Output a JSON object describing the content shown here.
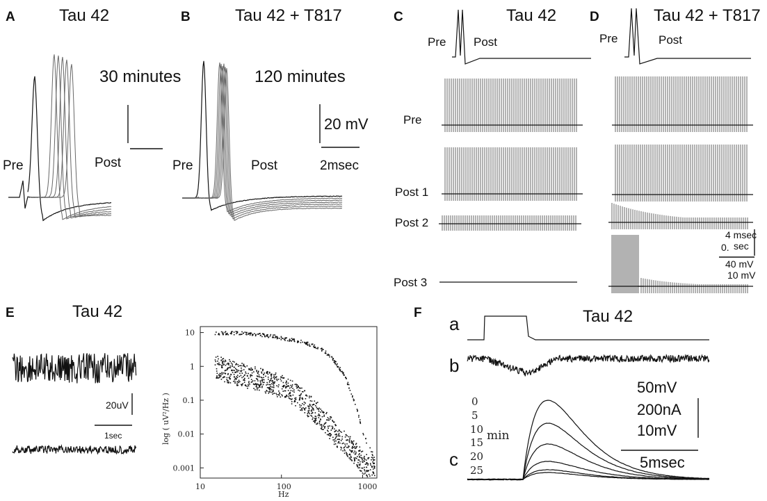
{
  "panel_letters": [
    "A",
    "B",
    "C",
    "D",
    "E",
    "F"
  ],
  "panel_a": {
    "title": "Tau 42",
    "time": "30 minutes",
    "pre": "Pre",
    "post": "Post"
  },
  "panel_b": {
    "title": "Tau 42 + T817",
    "time": "120 minutes",
    "pre": "Pre",
    "post": "Post",
    "scale_v": "20 mV",
    "scale_t": "2msec"
  },
  "panel_c": {
    "title": "Tau 42",
    "pre_small": "Pre",
    "post_small": "Post",
    "rows": [
      "Pre",
      "Post 1",
      "Post 2",
      "Post 3"
    ]
  },
  "panel_d": {
    "title": "Tau 42 + T817",
    "pre_small": "Pre",
    "post_small": "Post",
    "scale_lines": [
      "4 msec",
      "0.",
      "sec",
      "40 mV",
      "10 mV"
    ]
  },
  "panel_e": {
    "title": "Tau 42",
    "scale_v": "20uV",
    "scale_t": "1sec"
  },
  "panel_f": {
    "title": "Tau 42",
    "rows": [
      "a",
      "b",
      "c"
    ],
    "minutes": [
      "0",
      "5",
      "10",
      "15",
      "20",
      "25"
    ],
    "min_label": "min",
    "scale_lines": [
      "50mV",
      "200nA",
      "10mV"
    ],
    "scale_t": "5msec"
  },
  "chart_data": [
    {
      "type": "line",
      "panel": "A",
      "title": "Tau 42",
      "annotation": "30 minutes",
      "series_labels": [
        "Pre",
        "Post"
      ]
    },
    {
      "type": "line",
      "panel": "B",
      "title": "Tau 42 + T817",
      "annotation": "120 minutes",
      "series_labels": [
        "Pre",
        "Post"
      ],
      "scale_bars": [
        "20 mV",
        "2msec"
      ]
    },
    {
      "type": "line",
      "panel": "C",
      "title": "Tau 42",
      "traces": [
        "Pre",
        "Post 1",
        "Post 2",
        "Post 3"
      ]
    },
    {
      "type": "line",
      "panel": "D",
      "title": "Tau 42 + T817"
    },
    {
      "type": "scatter",
      "panel": "E",
      "title": "Tau 42",
      "xlabel": "Hz",
      "ylabel": "log ( uV²/Hz )",
      "xscale": "log",
      "yscale": "log",
      "xlim": [
        10,
        1500
      ],
      "ylim": [
        0.0005,
        15
      ],
      "x_ticks": [
        10,
        100,
        1000
      ],
      "x_tick_labels": [
        "10",
        "100",
        "1000"
      ],
      "y_ticks": [
        10,
        1,
        0.1,
        0.01,
        0.001
      ],
      "y_tick_labels": [
        "10",
        "1",
        "0.1",
        "0.01",
        "0.001"
      ],
      "series": [
        {
          "name": "upper",
          "x": [
            15,
            20,
            25,
            30,
            40,
            50,
            60,
            80,
            100,
            150,
            200,
            300,
            400,
            500,
            600,
            700,
            800,
            900,
            1000,
            1200,
            1400
          ],
          "y": [
            10,
            10,
            10,
            10,
            9.5,
            9,
            8.5,
            8,
            7,
            6,
            5,
            3.5,
            2,
            1,
            0.5,
            0.2,
            0.08,
            0.03,
            0.01,
            0.004,
            0.002
          ]
        },
        {
          "name": "lower",
          "x": [
            15,
            20,
            30,
            40,
            50,
            70,
            100,
            150,
            200,
            300,
            400,
            500,
            700,
            900,
            1200
          ],
          "y": [
            1.0,
            0.8,
            0.6,
            0.5,
            0.45,
            0.35,
            0.25,
            0.15,
            0.08,
            0.035,
            0.015,
            0.008,
            0.004,
            0.002,
            0.001
          ]
        }
      ]
    },
    {
      "type": "line",
      "panel": "F",
      "title": "Tau 42",
      "series_labels": [
        "0",
        "5",
        "10",
        "15",
        "20",
        "25"
      ],
      "unit": "min",
      "scale_bars": [
        "50mV",
        "200nA",
        "10mV",
        "5msec"
      ]
    }
  ]
}
